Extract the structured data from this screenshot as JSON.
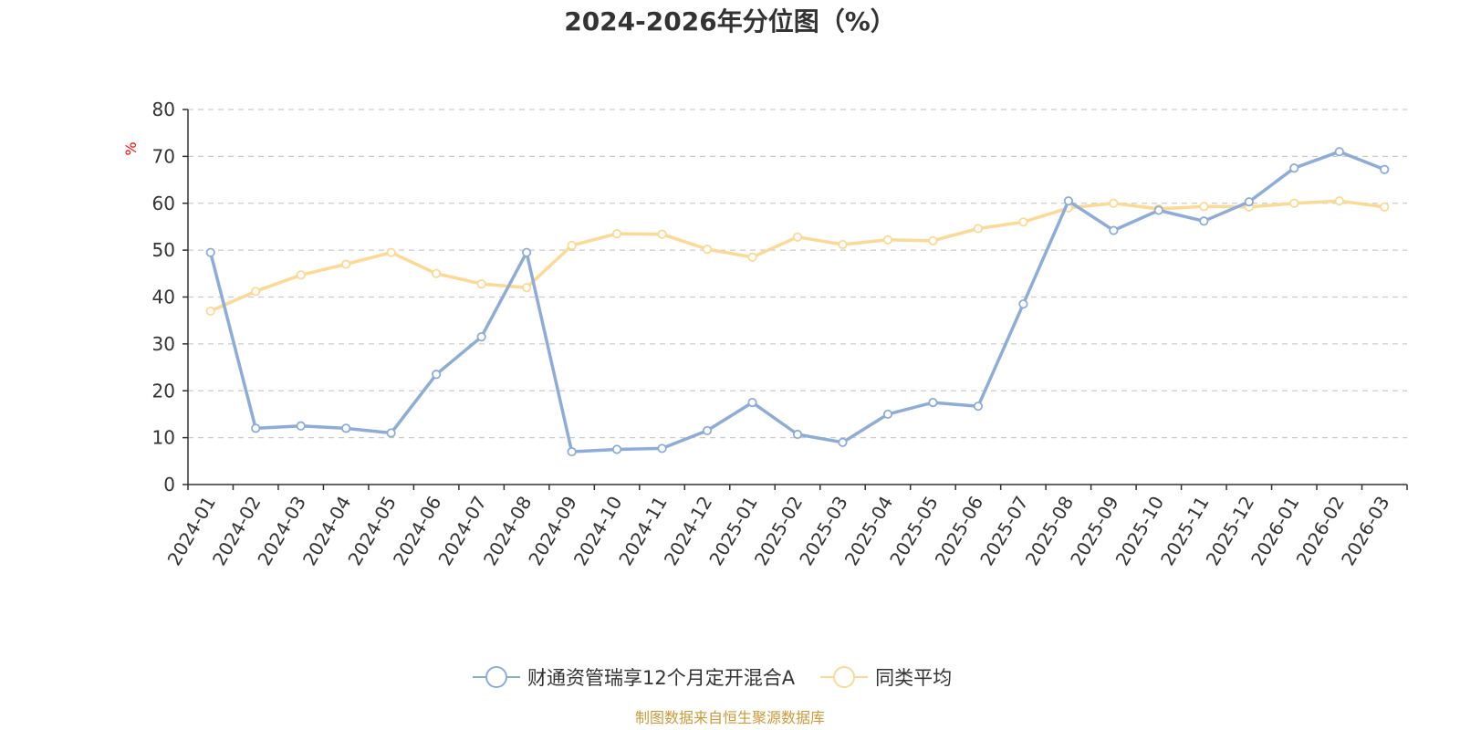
{
  "chart_data": {
    "type": "line",
    "title": "2024-2026年分位图（%）",
    "ylabel": "%",
    "xlabel": "",
    "ylim": [
      0,
      80
    ],
    "yticks": [
      0,
      10,
      20,
      30,
      40,
      50,
      60,
      70,
      80
    ],
    "grid": true,
    "legend_position": "bottom-center",
    "categories": [
      "2024-01",
      "2024-02",
      "2024-03",
      "2024-04",
      "2024-05",
      "2024-06",
      "2024-07",
      "2024-08",
      "2024-09",
      "2024-10",
      "2024-11",
      "2024-12",
      "2025-01",
      "2025-02",
      "2025-03",
      "2025-04",
      "2025-05",
      "2025-06",
      "2025-07",
      "2025-08",
      "2025-09",
      "2025-10",
      "2025-11",
      "2025-12",
      "2026-01",
      "2026-02",
      "2026-03"
    ],
    "series": [
      {
        "name": "财通资管瑞享12个月定开混合A",
        "color": "#8eacd8",
        "values": [
          49.5,
          12.0,
          12.5,
          12.0,
          11.0,
          23.5,
          31.5,
          49.5,
          7.0,
          7.5,
          7.7,
          11.5,
          17.5,
          10.7,
          9.0,
          15.0,
          17.5,
          16.7,
          38.5,
          60.5,
          54.2,
          58.5,
          56.2,
          60.3,
          67.5,
          71.0,
          67.2
        ]
      },
      {
        "name": "同类平均",
        "color": "#fcd995",
        "values": [
          37.0,
          41.2,
          44.7,
          47.0,
          49.5,
          45.0,
          42.8,
          42.0,
          51.0,
          53.5,
          53.4,
          50.2,
          48.5,
          52.8,
          51.2,
          52.2,
          52.0,
          54.6,
          56.0,
          59.0,
          60.0,
          58.8,
          59.3,
          59.2,
          60.0,
          60.5,
          59.2
        ]
      }
    ]
  },
  "source_text": "制图数据来自恒生聚源数据库",
  "colors": {
    "axis": "#333333",
    "grid": "#cccccc",
    "unit": "#ff0000",
    "source": "#cc9a3a"
  }
}
